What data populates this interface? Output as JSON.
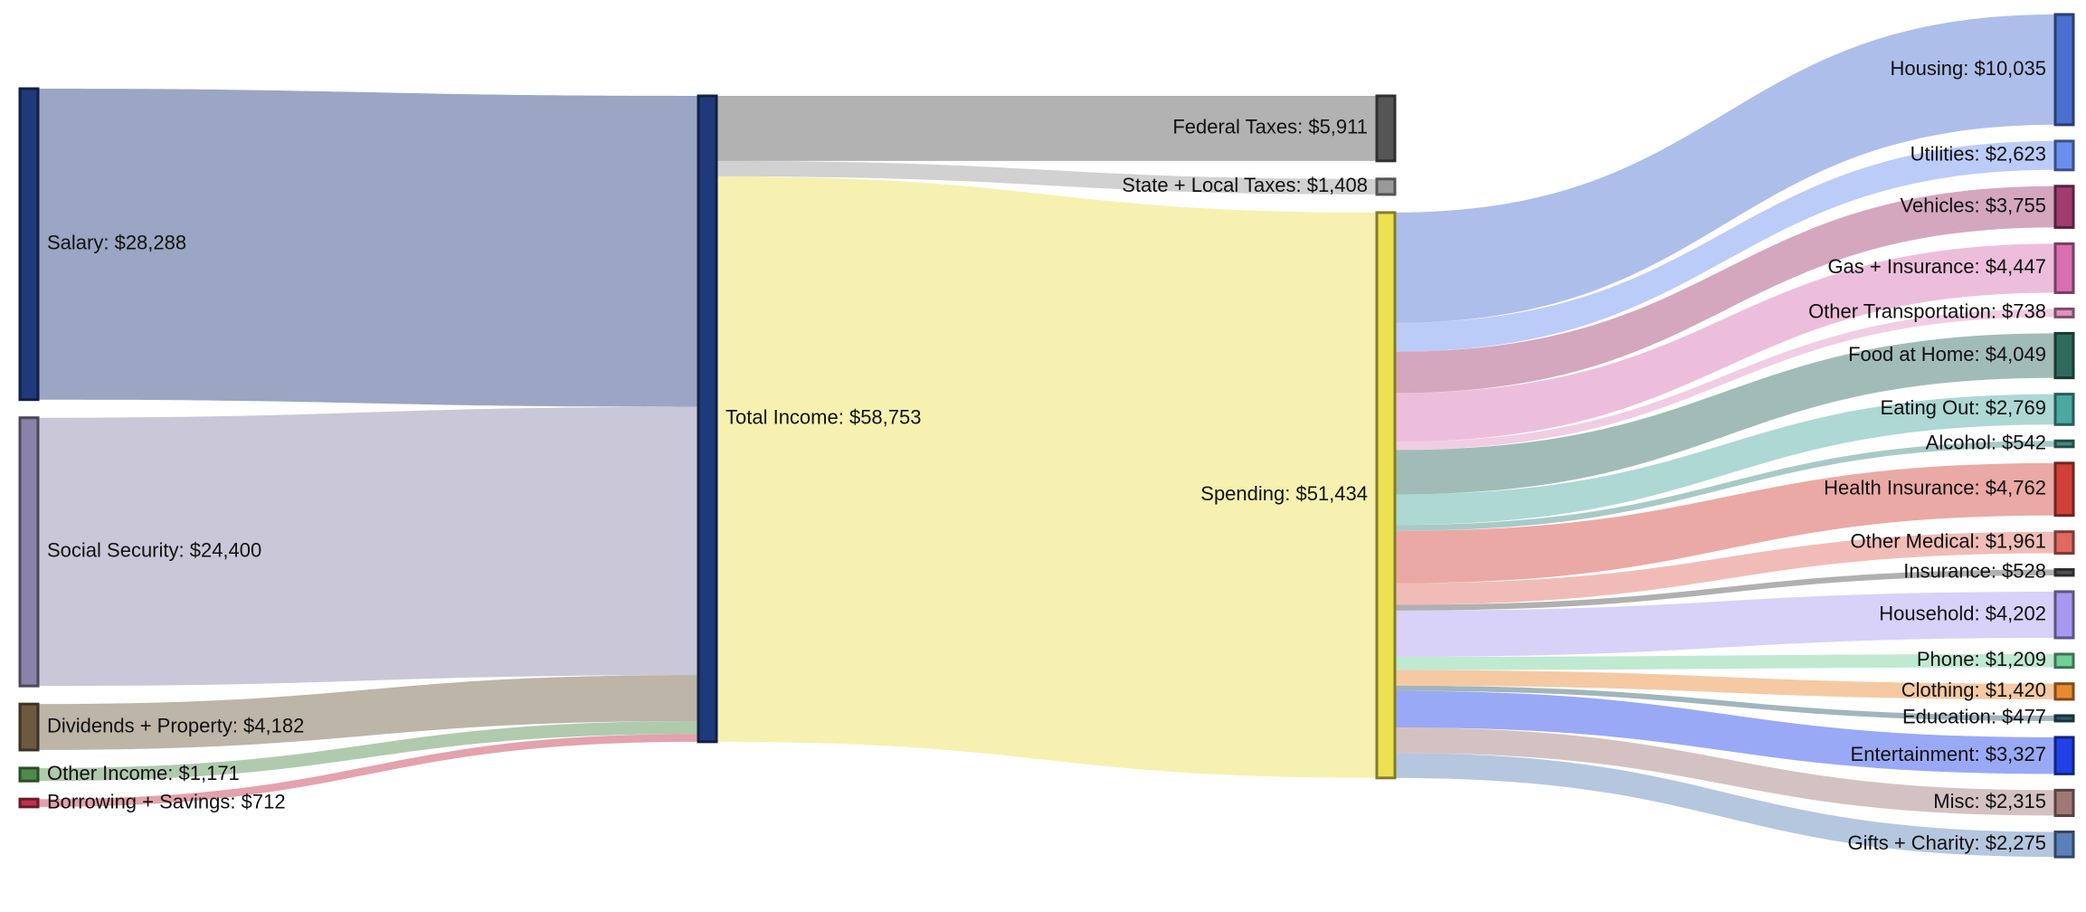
{
  "chart_data": {
    "type": "sankey",
    "title": "",
    "currency": "$",
    "nodes": [
      {
        "id": "salary",
        "label": "Salary",
        "value": 28288,
        "color": "#1f3a7a"
      },
      {
        "id": "social_security",
        "label": "Social Security",
        "value": 24400,
        "color": "#8a82a8"
      },
      {
        "id": "dividends",
        "label": "Dividends + Property",
        "value": 4182,
        "color": "#6b5a3e"
      },
      {
        "id": "other_income",
        "label": "Other Income",
        "value": 1171,
        "color": "#4f8a4a"
      },
      {
        "id": "borrowing",
        "label": "Borrowing + Savings",
        "value": 712,
        "color": "#c0304a"
      },
      {
        "id": "total_income",
        "label": "Total Income",
        "value": 58753,
        "color": "#1f3a7a"
      },
      {
        "id": "federal",
        "label": "Federal Taxes",
        "value": 5911,
        "color": "#555555"
      },
      {
        "id": "state_local",
        "label": "State + Local Taxes",
        "value": 1408,
        "color": "#999999"
      },
      {
        "id": "spending",
        "label": "Spending",
        "value": 51434,
        "color": "#ece150"
      },
      {
        "id": "housing",
        "label": "Housing",
        "value": 10035,
        "color": "#4a6fd0"
      },
      {
        "id": "utilities",
        "label": "Utilities",
        "value": 2623,
        "color": "#6a8ff0"
      },
      {
        "id": "vehicles",
        "label": "Vehicles",
        "value": 3755,
        "color": "#a03c6e"
      },
      {
        "id": "gas_insurance",
        "label": "Gas + Insurance",
        "value": 4447,
        "color": "#d86fb0"
      },
      {
        "id": "other_transport",
        "label": "Other Transportation",
        "value": 738,
        "color": "#e090c0"
      },
      {
        "id": "food_home",
        "label": "Food at Home",
        "value": 4049,
        "color": "#2f6a5e"
      },
      {
        "id": "eating_out",
        "label": "Eating Out",
        "value": 2769,
        "color": "#4aa8a0"
      },
      {
        "id": "alcohol",
        "label": "Alcohol",
        "value": 542,
        "color": "#3f8a80"
      },
      {
        "id": "health_insurance",
        "label": "Health Insurance",
        "value": 4762,
        "color": "#d04038"
      },
      {
        "id": "other_medical",
        "label": "Other Medical",
        "value": 1961,
        "color": "#e06a60"
      },
      {
        "id": "insurance",
        "label": "Insurance",
        "value": 528,
        "color": "#505050"
      },
      {
        "id": "household",
        "label": "Household",
        "value": 4202,
        "color": "#a898f0"
      },
      {
        "id": "phone",
        "label": "Phone",
        "value": 1209,
        "color": "#70d098"
      },
      {
        "id": "clothing",
        "label": "Clothing",
        "value": 1420,
        "color": "#e88a30"
      },
      {
        "id": "education",
        "label": "Education",
        "value": 477,
        "color": "#2f5a6a"
      },
      {
        "id": "entertainment",
        "label": "Entertainment",
        "value": 3327,
        "color": "#2040e8"
      },
      {
        "id": "misc",
        "label": "Misc",
        "value": 2315,
        "color": "#a07878"
      },
      {
        "id": "gifts",
        "label": "Gifts + Charity",
        "value": 2275,
        "color": "#5a80b8"
      }
    ],
    "links": [
      {
        "source": "salary",
        "target": "total_income",
        "value": 28288
      },
      {
        "source": "social_security",
        "target": "total_income",
        "value": 24400
      },
      {
        "source": "dividends",
        "target": "total_income",
        "value": 4182
      },
      {
        "source": "other_income",
        "target": "total_income",
        "value": 1171
      },
      {
        "source": "borrowing",
        "target": "total_income",
        "value": 712
      },
      {
        "source": "total_income",
        "target": "federal",
        "value": 5911
      },
      {
        "source": "total_income",
        "target": "state_local",
        "value": 1408
      },
      {
        "source": "total_income",
        "target": "spending",
        "value": 51434
      },
      {
        "source": "spending",
        "target": "housing",
        "value": 10035
      },
      {
        "source": "spending",
        "target": "utilities",
        "value": 2623
      },
      {
        "source": "spending",
        "target": "vehicles",
        "value": 3755
      },
      {
        "source": "spending",
        "target": "gas_insurance",
        "value": 4447
      },
      {
        "source": "spending",
        "target": "other_transport",
        "value": 738
      },
      {
        "source": "spending",
        "target": "food_home",
        "value": 4049
      },
      {
        "source": "spending",
        "target": "eating_out",
        "value": 2769
      },
      {
        "source": "spending",
        "target": "alcohol",
        "value": 542
      },
      {
        "source": "spending",
        "target": "health_insurance",
        "value": 4762
      },
      {
        "source": "spending",
        "target": "other_medical",
        "value": 1961
      },
      {
        "source": "spending",
        "target": "insurance",
        "value": 528
      },
      {
        "source": "spending",
        "target": "household",
        "value": 4202
      },
      {
        "source": "spending",
        "target": "phone",
        "value": 1209
      },
      {
        "source": "spending",
        "target": "clothing",
        "value": 1420
      },
      {
        "source": "spending",
        "target": "education",
        "value": 477
      },
      {
        "source": "spending",
        "target": "entertainment",
        "value": 3327
      },
      {
        "source": "spending",
        "target": "misc",
        "value": 2315
      },
      {
        "source": "spending",
        "target": "gifts",
        "value": 2275
      }
    ]
  }
}
